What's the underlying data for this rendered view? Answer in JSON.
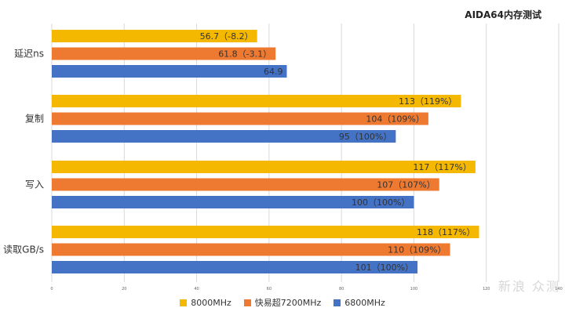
{
  "chart_data": {
    "type": "bar",
    "orientation": "horizontal",
    "title": "AIDA64内存测试",
    "categories": [
      "延迟ns",
      "复制",
      "写入",
      "读取GB/s"
    ],
    "series": [
      {
        "name": "8000MHz",
        "color": "#f5b800",
        "values": [
          56.7,
          113,
          117,
          118
        ],
        "labels": [
          "56.7（-8.2）",
          "113（119%）",
          "117（117%）",
          "118（117%）"
        ]
      },
      {
        "name": "快易超7200MHz",
        "color": "#ee7a31",
        "values": [
          61.8,
          104,
          107,
          110
        ],
        "labels": [
          "61.8（-3.1）",
          "104（109%）",
          "107（107%）",
          "110（109%）"
        ]
      },
      {
        "name": "6800MHz",
        "color": "#4472c4",
        "values": [
          64.9,
          95,
          100,
          101
        ],
        "labels": [
          "64.9",
          "95（100%）",
          "100（100%）",
          "101（100%）"
        ]
      }
    ],
    "xlim": [
      0,
      140
    ],
    "xticks": [
      0,
      20,
      40,
      60,
      80,
      100,
      120,
      140
    ],
    "grid": true,
    "legend": "bottom"
  },
  "watermark": "新浪 众测"
}
